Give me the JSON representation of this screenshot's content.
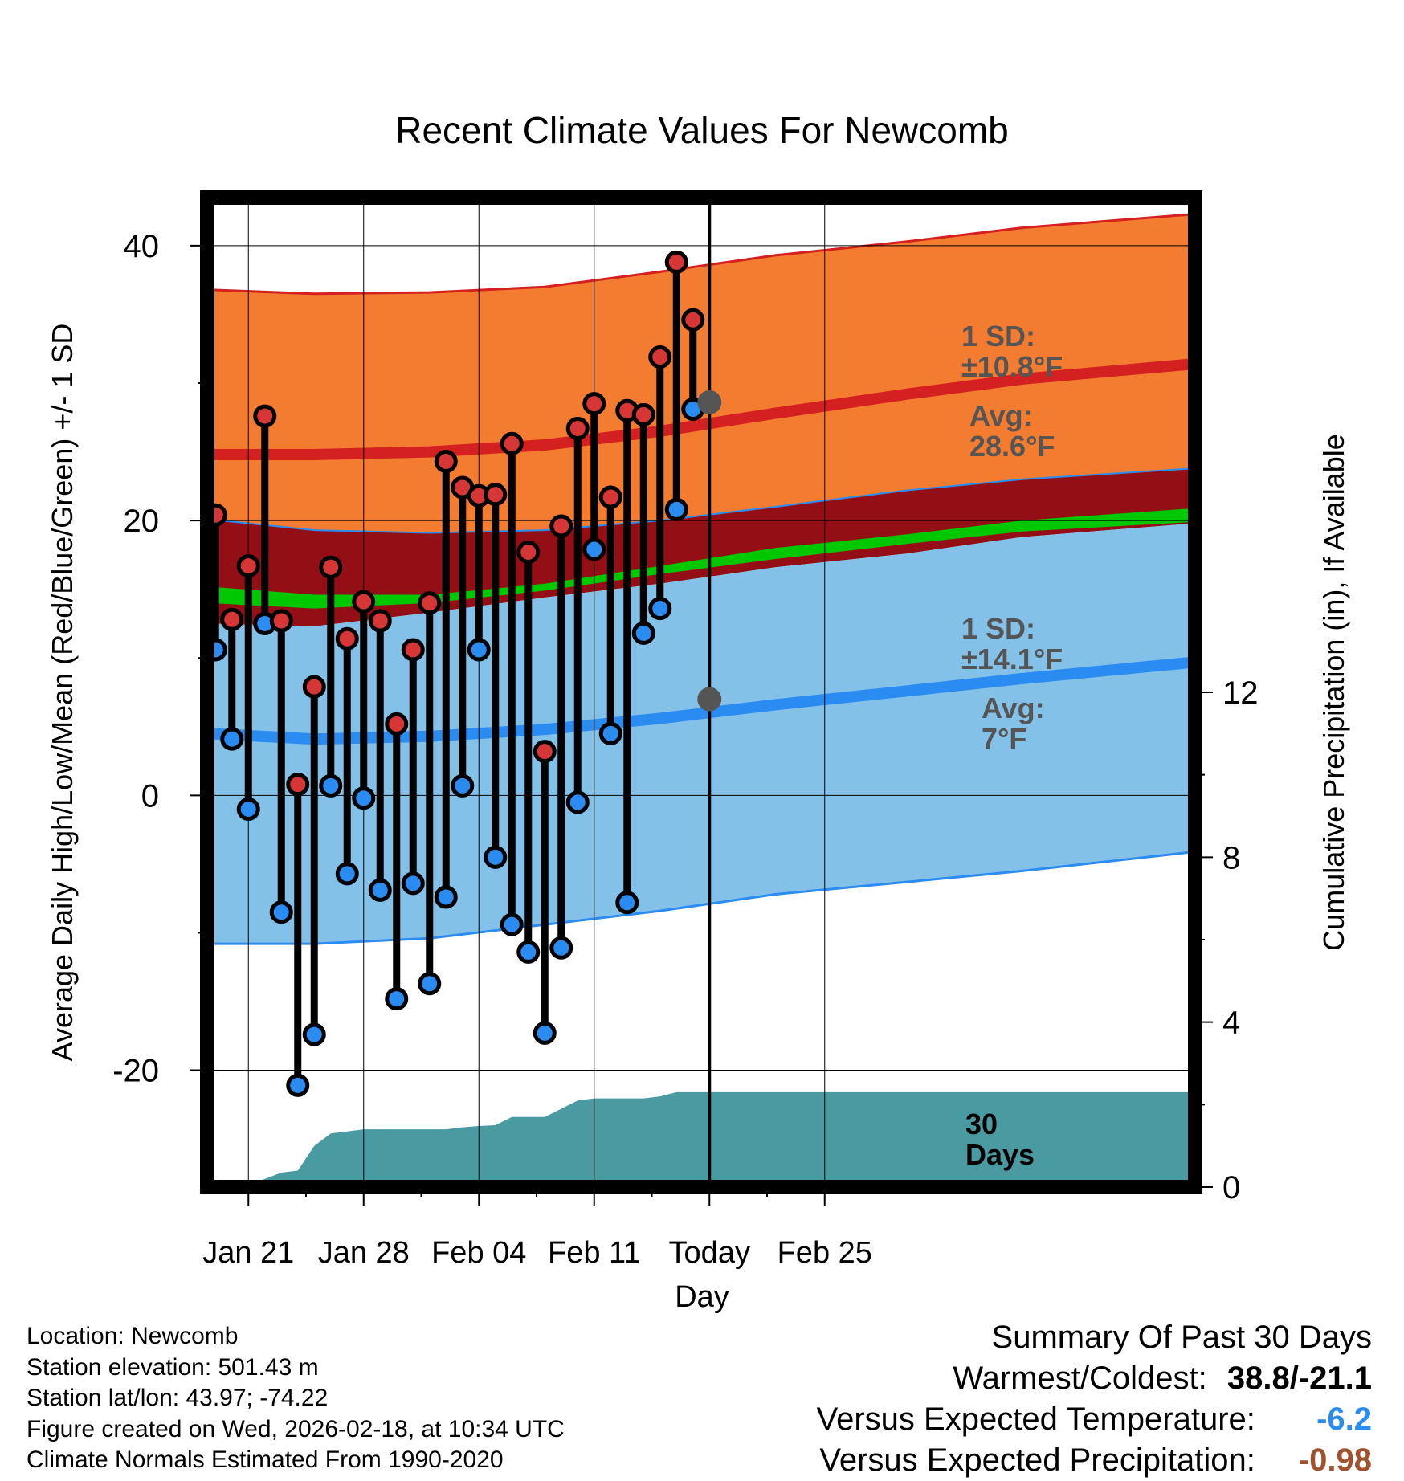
{
  "chart_data": {
    "type": "line",
    "title": "Recent Climate Values For Newcomb",
    "xlabel": "Day",
    "ylabel": "Average Daily High/Low/Mean (Red/Blue/Green) +/- 1 SD",
    "y2label": "Cumulative Precipitation (in), If Available",
    "ylim": [
      -28.5,
      43.5
    ],
    "y2lim": [
      0,
      24
    ],
    "x_range_days": [
      -2.5,
      57.5
    ],
    "y_ticks": [
      -20,
      0,
      20,
      40
    ],
    "y2_ticks": [
      0,
      4,
      8,
      12
    ],
    "x_ticks": [
      {
        "label": "Jan 21",
        "day": 0
      },
      {
        "label": "Jan 28",
        "day": 7
      },
      {
        "label": "Feb 04",
        "day": 14
      },
      {
        "label": "Feb 11",
        "day": 21
      },
      {
        "label": "Today",
        "day": 28
      },
      {
        "label": "Feb 25",
        "day": 35
      }
    ],
    "today_day": 28,
    "daily_days": [
      -2,
      -1,
      0,
      1,
      2,
      3,
      4,
      5,
      6,
      7,
      8,
      9,
      10,
      11,
      12,
      13,
      14,
      15,
      16,
      17,
      18,
      19,
      20,
      21,
      22,
      23,
      24,
      25,
      26,
      27
    ],
    "daily_high": [
      20.4,
      12.8,
      16.7,
      27.6,
      12.7,
      0.8,
      7.9,
      16.6,
      11.4,
      14.1,
      12.7,
      5.2,
      10.6,
      14.0,
      24.3,
      22.4,
      21.8,
      21.9,
      25.6,
      17.7,
      3.2,
      19.6,
      26.7,
      28.5,
      21.7,
      28.0,
      27.7,
      31.9,
      38.8,
      34.6
    ],
    "daily_low": [
      10.6,
      4.1,
      -1.0,
      12.5,
      -8.5,
      -21.1,
      -17.4,
      0.7,
      -5.7,
      -0.2,
      -6.9,
      -14.8,
      -6.4,
      -13.7,
      -7.4,
      0.7,
      10.6,
      -4.5,
      -9.4,
      -11.4,
      -17.3,
      -11.1,
      -0.5,
      17.9,
      4.5,
      -7.8,
      11.8,
      13.6,
      20.8,
      28.1
    ],
    "normal_days": [
      -2.5,
      4,
      11,
      18,
      25,
      32,
      40,
      47,
      57.5
    ],
    "high_mean": [
      24.8,
      24.8,
      25.0,
      25.5,
      26.5,
      27.8,
      29.2,
      30.3,
      31.4
    ],
    "high_upper": [
      36.8,
      36.5,
      36.6,
      37.0,
      38.1,
      39.3,
      40.3,
      41.3,
      42.3
    ],
    "high_lower": [
      20.1,
      19.3,
      19.1,
      19.3,
      20.0,
      21.0,
      22.2,
      23.0,
      23.8
    ],
    "mean_upper": [
      15.2,
      14.6,
      14.6,
      15.4,
      16.7,
      18.0,
      19.0,
      20.0,
      20.9
    ],
    "mean_lower": [
      14.0,
      13.6,
      14.0,
      14.9,
      16.1,
      17.2,
      18.3,
      19.2,
      19.9
    ],
    "low_upper": [
      12.5,
      12.3,
      13.3,
      14.4,
      15.4,
      16.6,
      17.6,
      18.8,
      19.8
    ],
    "low_mean": [
      4.5,
      4.1,
      4.3,
      4.8,
      5.6,
      6.6,
      7.6,
      8.5,
      9.7
    ],
    "low_lower": [
      -10.8,
      -10.8,
      -10.4,
      -9.4,
      -8.4,
      -7.2,
      -6.3,
      -5.5,
      -4.1
    ],
    "precip_days": [
      -2.5,
      -2,
      -1,
      0,
      1,
      2,
      3,
      4,
      5,
      6,
      7,
      8,
      9,
      10,
      11,
      12,
      13,
      14,
      15,
      16,
      17,
      18,
      19,
      20,
      21,
      22,
      23,
      24,
      25,
      26,
      27,
      28,
      57.5
    ],
    "precip_in": [
      0,
      0,
      0,
      0,
      0.2,
      0.35,
      0.4,
      1.0,
      1.3,
      1.35,
      1.4,
      1.4,
      1.4,
      1.4,
      1.4,
      1.4,
      1.45,
      1.48,
      1.5,
      1.7,
      1.7,
      1.7,
      1.9,
      2.1,
      2.15,
      2.15,
      2.15,
      2.15,
      2.2,
      2.3,
      2.3,
      2.3,
      2.3
    ],
    "annotations": {
      "high_sd": [
        "1 SD:",
        "±10.8°F"
      ],
      "high_avg": [
        "Avg:",
        "28.6°F"
      ],
      "low_sd": [
        "1 SD:",
        "±14.1°F"
      ],
      "low_avg": [
        "Avg:",
        "7°F"
      ],
      "precip": [
        "30",
        "Days"
      ],
      "high_avg_value": 28.6,
      "low_avg_value": 7
    },
    "colors": {
      "orange": "#f47c30",
      "dark_red": "#940f15",
      "green": "#00c800",
      "light_blue": "#84c1e8",
      "blue_line": "#2a8cf0",
      "red_line": "#d42020",
      "teal": "#4a9aa2",
      "marker_red": "#d73636",
      "marker_blue": "#2a8cf0",
      "annotation_gray": "#555555"
    }
  },
  "footer": {
    "location": "Location: Newcomb",
    "elevation": "Station elevation: 501.43 m",
    "latlon": "Station lat/lon: 43.97; -74.22",
    "created": "Figure created on Wed, 2026-02-18, at 10:34 UTC",
    "normals": "Climate Normals Estimated From 1990-2020"
  },
  "summary": {
    "heading": "Summary Of Past 30 Days",
    "warmest_label": "Warmest/Coldest:",
    "warmest_value": "38.8/-21.1",
    "temp_label": "Versus Expected Temperature:",
    "temp_value": "-6.2",
    "temp_color": "#2a8cf0",
    "precip_label": "Versus Expected Precipitation:",
    "precip_value": "-0.98",
    "precip_color": "#a0522d"
  }
}
